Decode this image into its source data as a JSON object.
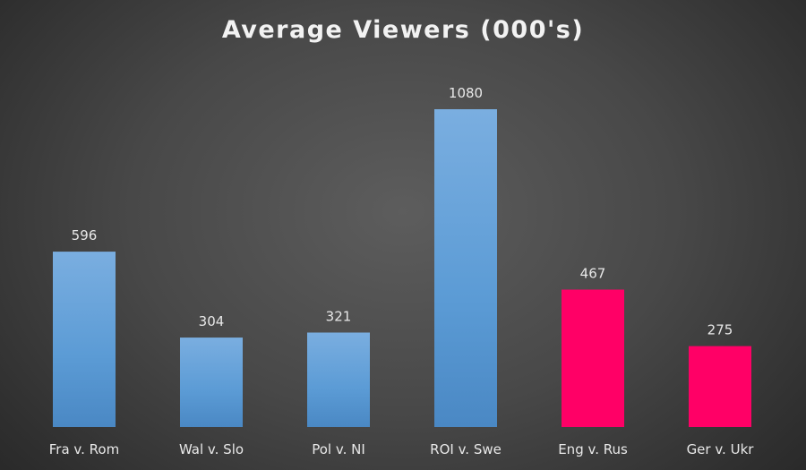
{
  "chart_data": {
    "type": "bar",
    "title": "Average Viewers (000's)",
    "xlabel": "",
    "ylabel": "",
    "categories": [
      "Fra v. Rom",
      "Wal v. Slo",
      "Pol v. NI",
      "ROI v. Swe",
      "Eng v. Rus",
      "Ger v. Ukr"
    ],
    "values": [
      596,
      304,
      321,
      1080,
      467,
      275
    ],
    "bar_colors": [
      "#5b9bd5",
      "#5b9bd5",
      "#5b9bd5",
      "#5b9bd5",
      "#ff0066",
      "#ff0066"
    ],
    "ylim": [
      0,
      1080
    ],
    "grid": false,
    "legend": "none"
  }
}
